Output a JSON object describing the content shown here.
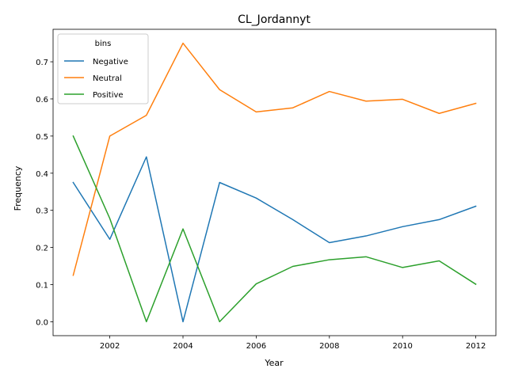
{
  "chart_data": {
    "type": "line",
    "title": "CL_Jordannyt",
    "xlabel": "Year",
    "ylabel": "Frequency",
    "xlim": [
      2000.45,
      2012.55
    ],
    "ylim": [
      -0.0375,
      0.7875
    ],
    "x_ticks": [
      2002,
      2004,
      2006,
      2008,
      2010,
      2012
    ],
    "y_ticks": [
      0.0,
      0.1,
      0.2,
      0.3,
      0.4,
      0.5,
      0.6,
      0.7
    ],
    "y_tick_labels": [
      "0.0",
      "0.1",
      "0.2",
      "0.3",
      "0.4",
      "0.5",
      "0.6",
      "0.7"
    ],
    "legend": {
      "title": "bins",
      "placement": "top-left"
    },
    "grid": false,
    "x": [
      2001,
      2002,
      2003,
      2004,
      2005,
      2006,
      2007,
      2008,
      2009,
      2010,
      2011,
      2012
    ],
    "series": [
      {
        "name": "Negative",
        "color": "#1f77b4",
        "values": [
          0.375,
          0.222,
          0.444,
          0.0,
          0.375,
          0.333,
          0.275,
          0.213,
          0.231,
          0.256,
          0.275,
          0.311
        ]
      },
      {
        "name": "Neutral",
        "color": "#ff7f0e",
        "values": [
          0.125,
          0.5,
          0.556,
          0.75,
          0.625,
          0.565,
          0.576,
          0.62,
          0.594,
          0.599,
          0.561,
          0.588
        ]
      },
      {
        "name": "Positive",
        "color": "#2ca02c",
        "values": [
          0.5,
          0.278,
          0.0,
          0.25,
          0.0,
          0.102,
          0.149,
          0.167,
          0.175,
          0.146,
          0.164,
          0.101
        ]
      }
    ]
  }
}
